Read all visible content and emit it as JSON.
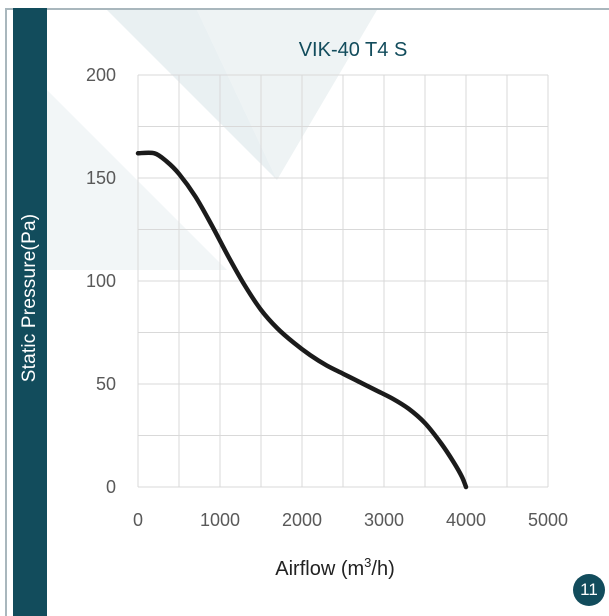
{
  "chart_data": {
    "type": "line",
    "title": "VIK-40 T4 S",
    "xlabel_prefix": "Airflow (m",
    "xlabel_sup": "3",
    "xlabel_suffix": "/h)",
    "ylabel": "Static Pressure(Pa)",
    "xlim": [
      0,
      5000
    ],
    "ylim": [
      0,
      200
    ],
    "x_ticks": [
      "0",
      "1000",
      "2000",
      "3000",
      "4000",
      "5000"
    ],
    "y_ticks": [
      "0",
      "50",
      "100",
      "150",
      "200"
    ],
    "x_minor_step": 500,
    "y_minor_step": 25,
    "grid": true,
    "series": [
      {
        "x": [
          0,
          200,
          350,
          500,
          700,
          900,
          1100,
          1300,
          1500,
          1700,
          1900,
          2100,
          2300,
          2500,
          2700,
          2900,
          3100,
          3300,
          3500,
          3700,
          3850,
          3950,
          4000
        ],
        "y": [
          162,
          162,
          158,
          152,
          141,
          127,
          112,
          98,
          86,
          77,
          70,
          64,
          59,
          55,
          51,
          47,
          43,
          38,
          31,
          21,
          12,
          5,
          0
        ]
      }
    ]
  },
  "page_number": "11",
  "colors": {
    "sidebar": "#124c5c",
    "line": "#1b1b1b",
    "grid": "#d9d9d9",
    "watermark": "#e7eef0"
  }
}
